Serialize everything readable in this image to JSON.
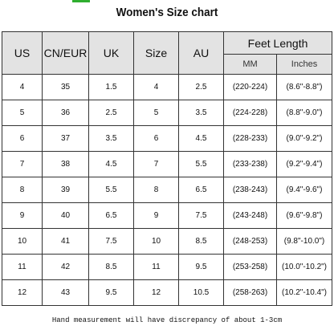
{
  "title": "Women's Size chart",
  "accent_color": "#2fae2f",
  "header": {
    "us": "US",
    "cn_eur": "CN/EUR",
    "uk": "UK",
    "size": "Size",
    "au": "AU",
    "feet_length": "Feet Length",
    "mm": "MM",
    "inches": "Inches"
  },
  "rows": [
    {
      "us": "4",
      "cn_eur": "35",
      "uk": "1.5",
      "size": "4",
      "au": "2.5",
      "mm": "(220-224)",
      "inches": "(8.6\"-8.8\")"
    },
    {
      "us": "5",
      "cn_eur": "36",
      "uk": "2.5",
      "size": "5",
      "au": "3.5",
      "mm": "(224-228)",
      "inches": "(8.8\"-9.0\")"
    },
    {
      "us": "6",
      "cn_eur": "37",
      "uk": "3.5",
      "size": "6",
      "au": "4.5",
      "mm": "(228-233)",
      "inches": "(9.0\"-9.2\")"
    },
    {
      "us": "7",
      "cn_eur": "38",
      "uk": "4.5",
      "size": "7",
      "au": "5.5",
      "mm": "(233-238)",
      "inches": "(9.2\"-9.4\")"
    },
    {
      "us": "8",
      "cn_eur": "39",
      "uk": "5.5",
      "size": "8",
      "au": "6.5",
      "mm": "(238-243)",
      "inches": "(9.4\"-9.6\")"
    },
    {
      "us": "9",
      "cn_eur": "40",
      "uk": "6.5",
      "size": "9",
      "au": "7.5",
      "mm": "(243-248)",
      "inches": "(9.6\"-9.8\")"
    },
    {
      "us": "10",
      "cn_eur": "41",
      "uk": "7.5",
      "size": "10",
      "au": "8.5",
      "mm": "(248-253)",
      "inches": "(9.8\"-10.0\")"
    },
    {
      "us": "11",
      "cn_eur": "42",
      "uk": "8.5",
      "size": "11",
      "au": "9.5",
      "mm": "(253-258)",
      "inches": "(10.0\"-10.2\")"
    },
    {
      "us": "12",
      "cn_eur": "43",
      "uk": "9.5",
      "size": "12",
      "au": "10.5",
      "mm": "(258-263)",
      "inches": "(10.2\"-10.4\")"
    }
  ],
  "note": "Hand measurement will have discrepancy of about 1-3cm"
}
